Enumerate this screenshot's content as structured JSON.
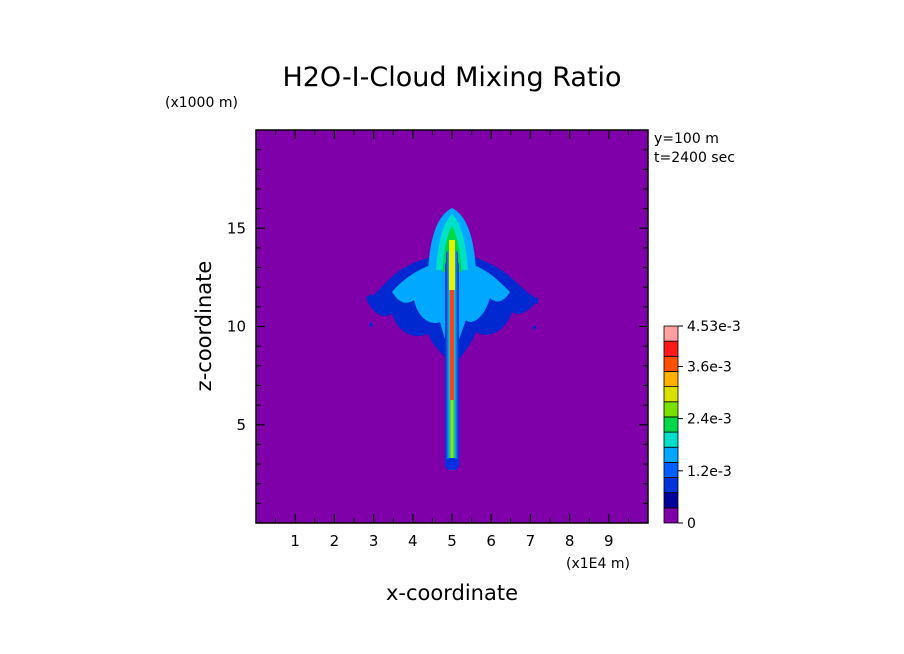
{
  "chart_data": {
    "type": "heatmap",
    "title": "H2O-I-Cloud Mixing Ratio",
    "xlabel": "x-coordinate",
    "ylabel": "z-coordinate",
    "x_unit_label": "(x1E4 m)",
    "y_unit_label": "(x1000 m)",
    "annotations": [
      "y=100 m",
      "t=2400 sec"
    ],
    "xlim": [
      0,
      10
    ],
    "ylim": [
      0,
      20
    ],
    "x_ticks": [
      1,
      2,
      3,
      4,
      5,
      6,
      7,
      8,
      9
    ],
    "y_ticks": [
      5,
      10,
      15
    ],
    "grid": false,
    "legend_placement": "right",
    "background_color": "#7f00a8",
    "colorbar": {
      "min": 0,
      "max": 0.00453,
      "tick_labels": [
        "0",
        "1.2e-3",
        "2.4e-3",
        "3.6e-3",
        "4.53e-3"
      ],
      "tick_values": [
        0,
        0.0012,
        0.0024,
        0.0036,
        0.00453
      ],
      "levels": 12,
      "colors": [
        "#7f00a8",
        "#00009c",
        "#0033d8",
        "#0060ff",
        "#00a8ff",
        "#00e0c8",
        "#00d84a",
        "#7ae000",
        "#d8e000",
        "#ffb000",
        "#ff5000",
        "#ff1a1a",
        "#ffa0a0"
      ]
    },
    "features": [
      {
        "name": "main updraft column",
        "x": 5.0,
        "z_range": [
          2.7,
          16.0
        ],
        "peak_value": 0.0045
      },
      {
        "name": "anvil spread",
        "x_range": [
          2.8,
          7.2
        ],
        "z_range": [
          9.5,
          13.2
        ],
        "typical_value": 0.0009
      }
    ]
  }
}
